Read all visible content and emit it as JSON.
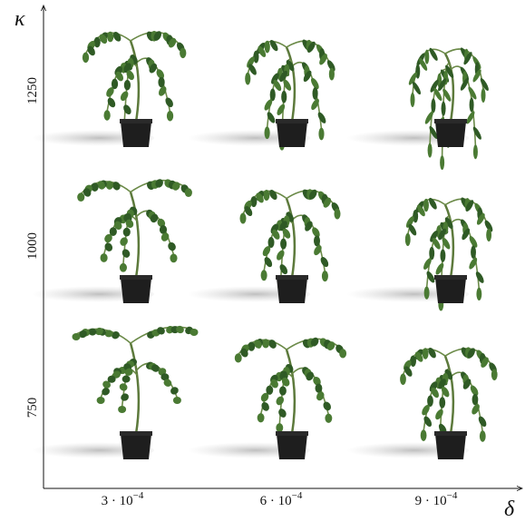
{
  "axes": {
    "y_label": "κ",
    "x_label": "δ",
    "y_ticks": [
      "1250",
      "1000",
      "750"
    ],
    "x_ticks": [
      {
        "base": "3 · 10",
        "exponent": "−4"
      },
      {
        "base": "6 · 10",
        "exponent": "−4"
      },
      {
        "base": "9 · 10",
        "exponent": "−4"
      }
    ]
  }
}
